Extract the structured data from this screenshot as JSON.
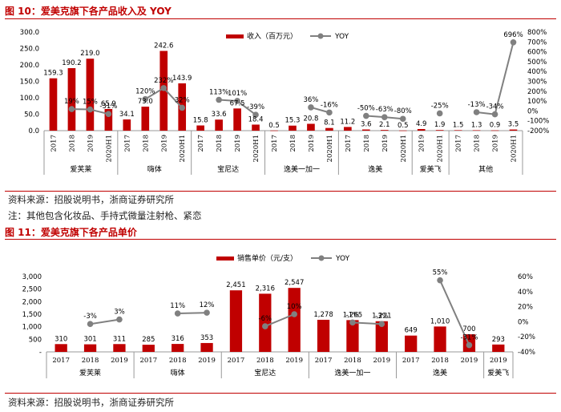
{
  "figure1": {
    "title": "图 10：爱美克旗下各产品收入及 YOY",
    "source": "资料来源：招股说明书，浙商证券研究所",
    "note": "注：其他包含化妆品、手持式微量注射枪、紧恋"
  },
  "figure2": {
    "title": "图 11：爱美克旗下各产品单价",
    "source": "资料来源：招股说明书，浙商证券研究所"
  },
  "colors": {
    "bar": "#c00000",
    "line": "#808080",
    "rule": "#c00000"
  },
  "chart_data": [
    {
      "type": "bar",
      "series_types": [
        "bar",
        "line"
      ],
      "legend": [
        "收入（百万元）",
        "YOY"
      ],
      "legend_placement": "top-center",
      "x": [
        "2017",
        "2018",
        "2019",
        "2020H1",
        "2017",
        "2018",
        "2019",
        "2020H1",
        "2017",
        "2018",
        "2019",
        "2020H1",
        "2017",
        "2018",
        "2019",
        "2020H1",
        "2017",
        "2018",
        "2019",
        "2020H1",
        "2019",
        "2020H1",
        "2017",
        "2018",
        "2019",
        "2020H1"
      ],
      "groups": [
        {
          "name": "爱芙莱",
          "count": 4
        },
        {
          "name": "嗨体",
          "count": 4
        },
        {
          "name": "宝尼达",
          "count": 4
        },
        {
          "name": "逸美一加一",
          "count": 4
        },
        {
          "name": "逸美",
          "count": 4
        },
        {
          "name": "爱美飞",
          "count": 2
        },
        {
          "name": "其他",
          "count": 4
        }
      ],
      "bar_values": [
        159.3,
        190.2,
        219.0,
        65.9,
        34.1,
        73.0,
        242.6,
        143.9,
        15.8,
        33.6,
        67.5,
        18.4,
        0.5,
        15.3,
        20.8,
        8.1,
        11.2,
        3.6,
        2.1,
        0.5,
        4.9,
        1.9,
        1.5,
        1.3,
        0.9,
        3.5
      ],
      "bar_labels": [
        "159.3",
        "190.2",
        "219.0",
        "65.9",
        "34.1",
        "73.0",
        "242.6",
        "143.9",
        "15.8",
        "33.6",
        "67.5",
        "18.4",
        "0.5",
        "15.3",
        "20.8",
        "8.1",
        "11.2",
        "3.6",
        "2.1",
        "0.5",
        "4.9",
        "1.9",
        "1.5",
        "1.3",
        "0.9",
        "3.5"
      ],
      "yoy_values": [
        null,
        19,
        15,
        -31,
        null,
        120,
        232,
        32,
        null,
        113,
        101,
        -39,
        null,
        null,
        36,
        -16,
        null,
        -50,
        -63,
        -80,
        null,
        -25,
        null,
        -13,
        -34,
        696
      ],
      "yoy_labels": [
        "",
        "19%",
        "15%",
        "-31%",
        "",
        "120%",
        "232%",
        "32%",
        "",
        "113%",
        "101%",
        "-39%",
        "",
        "",
        "36%",
        "-16%",
        "",
        "-50%",
        "-63%",
        "-80%",
        "",
        "-25%",
        "",
        "-13%",
        "-34%",
        "696%"
      ],
      "y_left": {
        "min": 0,
        "max": 300,
        "ticks": [
          "0.0",
          "50.0",
          "100.0",
          "150.0",
          "200.0",
          "250.0",
          "300.0"
        ]
      },
      "y_right": {
        "min": -200,
        "max": 800,
        "ticks": [
          "-200%",
          "-100%",
          "0%",
          "100%",
          "200%",
          "300%",
          "400%",
          "500%",
          "600%",
          "700%",
          "800%"
        ]
      }
    },
    {
      "type": "bar",
      "series_types": [
        "bar",
        "line"
      ],
      "legend": [
        "销售单价（元/支）",
        "YOY"
      ],
      "legend_placement": "top-center",
      "x": [
        "2017",
        "2018",
        "2019",
        "2017",
        "2018",
        "2019",
        "2017",
        "2018",
        "2019",
        "2017",
        "2018",
        "2019",
        "2017",
        "2018",
        "2019",
        "2019"
      ],
      "groups": [
        {
          "name": "爱芙莱",
          "count": 3
        },
        {
          "name": "嗨体",
          "count": 3
        },
        {
          "name": "宝尼达",
          "count": 3
        },
        {
          "name": "逸美一加一",
          "count": 3
        },
        {
          "name": "逸美",
          "count": 3
        },
        {
          "name": "爱美飞",
          "count": 1
        }
      ],
      "bar_values": [
        310,
        301,
        311,
        285,
        316,
        353,
        2451,
        2316,
        2547,
        1278,
        1265,
        1221,
        649,
        1010,
        700,
        293
      ],
      "bar_labels": [
        "310",
        "301",
        "311",
        "285",
        "316",
        "353",
        "2,451",
        "2,316",
        "2,547",
        "1,278",
        "1,265",
        "1,221",
        "649",
        "1,010",
        "700",
        "293"
      ],
      "yoy_values": [
        null,
        -3,
        3,
        null,
        11,
        12,
        null,
        -6,
        10,
        null,
        -1,
        -3,
        null,
        55,
        -31,
        null
      ],
      "yoy_labels": [
        "",
        "-3%",
        "3%",
        "",
        "11%",
        "12%",
        "",
        "-6%",
        "10%",
        "",
        "-1%",
        "-3%",
        "",
        "55%",
        "-31%",
        ""
      ],
      "y_left": {
        "min": 0,
        "max": 3000,
        "ticks": [
          "-",
          "500",
          "1,000",
          "1,500",
          "2,000",
          "2,500",
          "3,000"
        ]
      },
      "y_right": {
        "min": -40,
        "max": 60,
        "ticks": [
          "-40%",
          "-20%",
          "0%",
          "20%",
          "40%",
          "60%"
        ]
      }
    }
  ]
}
